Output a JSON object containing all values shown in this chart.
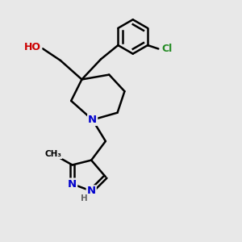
{
  "background_color": "#e8e8e8",
  "bond_color": "#000000",
  "atom_colors": {
    "O": "#cc0000",
    "N": "#0000cc",
    "Cl": "#228B22",
    "H": "#666666",
    "C": "#000000"
  },
  "figsize": [
    3.0,
    3.0
  ],
  "dpi": 100
}
